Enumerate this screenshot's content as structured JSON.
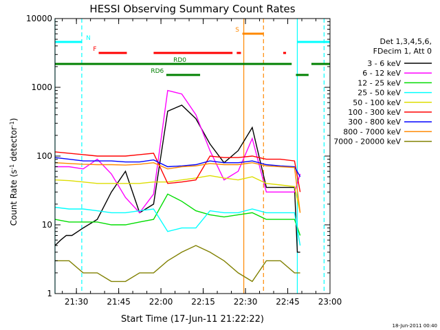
{
  "chart_data": {
    "type": "line",
    "title": "HESSI Observing Summary Count Rates",
    "xlabel": "Start Time (17-Jun-11 21:22:22)",
    "ylabel_main": "Count Rate (s",
    "ylabel_sup1": "-1",
    "ylabel_mid": " detector",
    "ylabel_sup2": "-1",
    "ylabel_end": ")",
    "yscale": "log",
    "ylim": [
      1,
      10000
    ],
    "xlim_min": [
      0,
      97.6
    ],
    "x_ticks": [
      {
        "min": 7.6,
        "label": "21:30"
      },
      {
        "min": 22.6,
        "label": "21:45"
      },
      {
        "min": 37.6,
        "label": "22:00"
      },
      {
        "min": 52.6,
        "label": "22:15"
      },
      {
        "min": 67.6,
        "label": "22:30"
      },
      {
        "min": 82.6,
        "label": "22:45"
      },
      {
        "min": 97.6,
        "label": "23:00"
      }
    ],
    "y_ticks": [
      {
        "v": 1,
        "label": "1"
      },
      {
        "v": 10,
        "label": "10"
      },
      {
        "v": 100,
        "label": "100"
      },
      {
        "v": 1000,
        "label": "1000"
      },
      {
        "v": 10000,
        "label": "10000"
      }
    ],
    "legend_header": [
      "Det 1,3,4,5,6,",
      "FDecim 1, Att 0"
    ],
    "legend_placement": "right",
    "series": [
      {
        "name": "3 - 6 keV",
        "color": "#000000",
        "x": [
          0,
          2,
          4,
          6,
          10,
          15,
          20,
          25,
          30,
          35,
          40,
          45,
          50,
          55,
          60,
          65,
          70,
          75,
          80,
          85,
          86,
          87
        ],
        "y": [
          5,
          6,
          7,
          7,
          9,
          12,
          30,
          60,
          15,
          20,
          450,
          550,
          350,
          150,
          80,
          120,
          260,
          35,
          35,
          35,
          4,
          4
        ]
      },
      {
        "name": "6 - 12 keV",
        "color": "#ff00ff",
        "x": [
          0,
          5,
          10,
          15,
          20,
          25,
          30,
          35,
          40,
          45,
          50,
          55,
          60,
          65,
          70,
          75,
          80,
          85,
          87
        ],
        "y": [
          70,
          70,
          65,
          90,
          55,
          25,
          15,
          28,
          900,
          800,
          400,
          120,
          45,
          60,
          180,
          30,
          30,
          30,
          55
        ]
      },
      {
        "name": "12 - 25 keV",
        "color": "#00dd00",
        "x": [
          0,
          5,
          10,
          15,
          20,
          25,
          30,
          35,
          40,
          45,
          50,
          55,
          60,
          65,
          70,
          75,
          80,
          85,
          87
        ],
        "y": [
          12,
          11,
          11,
          11,
          10,
          10,
          11,
          12,
          28,
          22,
          16,
          14,
          13,
          14,
          15,
          12,
          12,
          12,
          7
        ]
      },
      {
        "name": "25 - 50 keV",
        "color": "#00ffff",
        "x": [
          0,
          5,
          10,
          15,
          20,
          25,
          30,
          35,
          40,
          45,
          50,
          55,
          60,
          65,
          70,
          75,
          80,
          85,
          87
        ],
        "y": [
          18,
          17,
          17,
          16,
          15,
          15,
          16,
          17,
          8,
          9,
          9,
          16,
          15,
          15,
          17,
          15,
          15,
          15,
          5
        ]
      },
      {
        "name": "50 - 100 keV",
        "color": "#dddd00",
        "x": [
          0,
          5,
          10,
          15,
          20,
          25,
          30,
          35,
          40,
          45,
          50,
          55,
          60,
          65,
          70,
          75,
          80,
          85,
          87
        ],
        "y": [
          45,
          44,
          42,
          40,
          40,
          40,
          40,
          42,
          42,
          45,
          48,
          52,
          48,
          45,
          50,
          40,
          38,
          36,
          15
        ]
      },
      {
        "name": "100 - 300 keV",
        "color": "#ff0000",
        "x": [
          0,
          5,
          10,
          15,
          20,
          25,
          30,
          35,
          40,
          45,
          50,
          55,
          60,
          65,
          70,
          75,
          80,
          85,
          87
        ],
        "y": [
          115,
          110,
          105,
          100,
          100,
          100,
          105,
          110,
          40,
          42,
          45,
          100,
          95,
          95,
          100,
          90,
          90,
          85,
          30
        ]
      },
      {
        "name": "300 - 800 keV",
        "color": "#0000ff",
        "x": [
          0,
          5,
          10,
          15,
          20,
          25,
          30,
          35,
          40,
          45,
          50,
          55,
          60,
          65,
          70,
          75,
          80,
          85,
          87
        ],
        "y": [
          95,
          90,
          85,
          85,
          85,
          82,
          82,
          88,
          70,
          72,
          75,
          85,
          80,
          80,
          85,
          75,
          72,
          70,
          50
        ]
      },
      {
        "name": "800 - 7000 keV",
        "color": "#ff8800",
        "x": [
          0,
          5,
          10,
          15,
          20,
          25,
          30,
          35,
          40,
          45,
          50,
          55,
          60,
          65,
          70,
          75,
          80,
          85,
          87
        ],
        "y": [
          80,
          78,
          76,
          75,
          75,
          74,
          76,
          80,
          65,
          70,
          72,
          78,
          75,
          75,
          80,
          72,
          70,
          68,
          15
        ]
      },
      {
        "name": "7000 - 20000 keV",
        "color": "#808000",
        "x": [
          0,
          5,
          10,
          15,
          20,
          25,
          30,
          35,
          40,
          45,
          50,
          55,
          60,
          65,
          70,
          75,
          80,
          85,
          87
        ],
        "y": [
          3,
          3,
          2,
          2,
          1.5,
          1.5,
          2,
          2,
          3,
          4,
          5,
          4,
          3,
          2,
          1.5,
          3,
          3,
          2,
          2
        ]
      }
    ],
    "flag_bars": [
      {
        "label": "N",
        "color": "#00ffff",
        "y_frac": 0.085,
        "segments": [
          [
            0,
            9.5
          ],
          [
            86,
            97.6
          ]
        ],
        "label_min": 11
      },
      {
        "label": "F",
        "color": "#ff0000",
        "y_frac": 0.125,
        "segments": [
          [
            15.5,
            25.5
          ],
          [
            35,
            63
          ],
          [
            64.5,
            66
          ],
          [
            81,
            82
          ]
        ],
        "label_min": 13.5
      },
      {
        "label": "S",
        "color": "#ff8800",
        "y_frac": 0.055,
        "segments": [
          [
            66.5,
            74
          ]
        ],
        "label_min": 64
      },
      {
        "label": "RD0",
        "color": "#008000",
        "y_frac": 0.165,
        "segments": [
          [
            0,
            84
          ],
          [
            91,
            97.6
          ]
        ],
        "label_min": 42
      },
      {
        "label": "RD6",
        "color": "#008000",
        "y_frac": 0.205,
        "segments": [
          [
            39.5,
            51.5
          ],
          [
            85.5,
            90
          ]
        ],
        "label_min": 34
      }
    ],
    "vlines": [
      {
        "min": 0,
        "color": "#00ffff",
        "style": "solid"
      },
      {
        "min": 9.5,
        "color": "#00ffff",
        "style": "dashed"
      },
      {
        "min": 67,
        "color": "#ff8800",
        "style": "solid"
      },
      {
        "min": 74,
        "color": "#ff8800",
        "style": "dashed"
      },
      {
        "min": 86,
        "color": "#00ffff",
        "style": "solid"
      },
      {
        "min": 95.5,
        "color": "#00ffff",
        "style": "dashed"
      }
    ],
    "footer_stamp": "18-Jun-2011 00:40"
  }
}
